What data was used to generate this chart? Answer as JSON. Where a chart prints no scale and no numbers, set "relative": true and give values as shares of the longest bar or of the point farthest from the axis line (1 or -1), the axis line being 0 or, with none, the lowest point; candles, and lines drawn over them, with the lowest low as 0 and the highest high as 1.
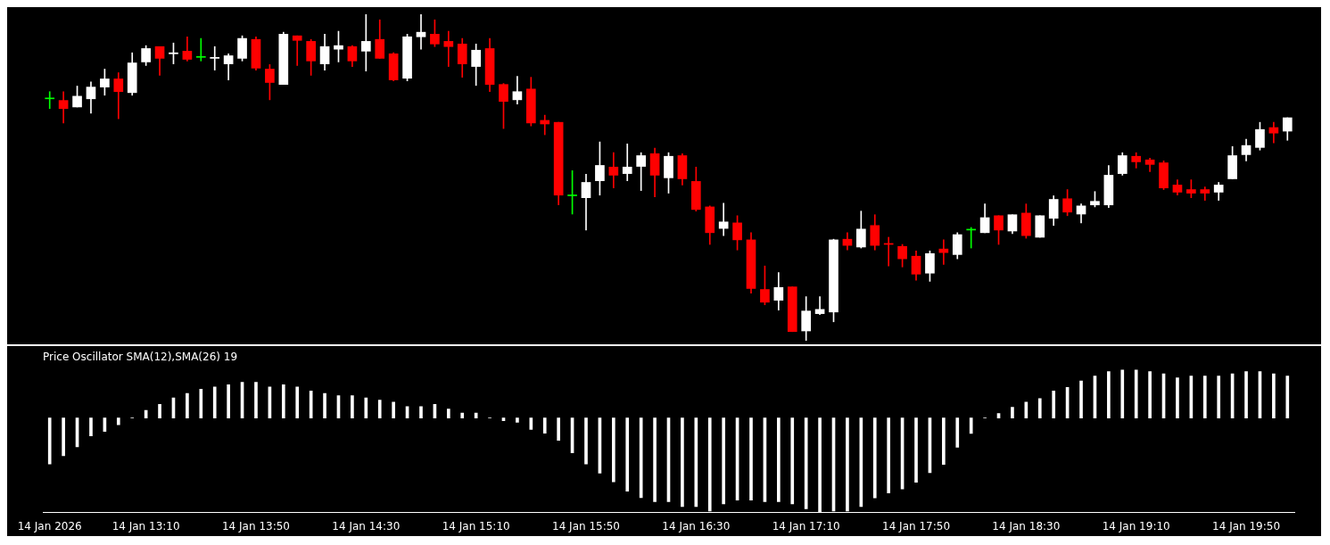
{
  "chart_data": [
    {
      "type": "candlestick",
      "relative": true,
      "tick_labels": false,
      "categories": [
        null,
        null,
        null,
        null,
        null,
        null,
        null,
        null,
        null,
        null,
        null,
        null,
        null,
        null,
        null,
        null,
        null,
        null,
        null,
        null,
        null,
        null,
        null,
        null,
        null,
        null,
        null,
        null,
        null,
        null,
        null,
        null,
        null,
        null,
        null,
        null,
        null,
        null,
        null,
        null,
        null,
        null,
        null,
        null,
        null,
        null,
        null,
        null,
        null,
        null,
        null,
        null,
        null,
        null,
        null,
        null,
        null,
        null,
        null,
        null,
        null,
        null,
        null,
        null,
        null,
        null,
        null,
        null,
        null,
        null,
        null,
        null,
        null,
        null,
        null,
        null,
        null,
        null,
        null,
        null,
        null,
        null,
        null,
        null,
        null,
        null,
        null,
        null,
        null,
        null,
        null
      ],
      "ohlc": [
        [
          0.741,
          0.763,
          0.711,
          0.741
        ],
        [
          0.736,
          0.763,
          0.667,
          0.711
        ],
        [
          0.716,
          0.78,
          0.716,
          0.749
        ],
        [
          0.741,
          0.793,
          0.697,
          0.777
        ],
        [
          0.777,
          0.832,
          0.752,
          0.802
        ],
        [
          0.802,
          0.821,
          0.68,
          0.763
        ],
        [
          0.76,
          0.882,
          0.752,
          0.851
        ],
        [
          0.854,
          0.904,
          0.843,
          0.895
        ],
        [
          0.901,
          0.901,
          0.813,
          0.865
        ],
        [
          0.879,
          0.912,
          0.848,
          0.882
        ],
        [
          0.887,
          0.931,
          0.857,
          0.862
        ],
        [
          0.868,
          0.926,
          0.857,
          0.868
        ],
        [
          0.865,
          0.901,
          0.829,
          0.868
        ],
        [
          0.848,
          0.879,
          0.799,
          0.873
        ],
        [
          0.865,
          0.934,
          0.857,
          0.926
        ],
        [
          0.923,
          0.931,
          0.829,
          0.835
        ],
        [
          0.832,
          0.846,
          0.738,
          0.791
        ],
        [
          0.785,
          0.945,
          0.785,
          0.939
        ],
        [
          0.934,
          0.934,
          0.843,
          0.92
        ],
        [
          0.917,
          0.923,
          0.813,
          0.857
        ],
        [
          0.848,
          0.939,
          0.829,
          0.901
        ],
        [
          0.893,
          0.948,
          0.854,
          0.904
        ],
        [
          0.901,
          0.904,
          0.84,
          0.857
        ],
        [
          0.887,
          1,
          0.826,
          0.917
        ],
        [
          0.923,
          0.983,
          0.865,
          0.865
        ],
        [
          0.879,
          0.882,
          0.796,
          0.799
        ],
        [
          0.804,
          0.939,
          0.796,
          0.931
        ],
        [
          0.931,
          1,
          0.893,
          0.945
        ],
        [
          0.939,
          0.983,
          0.901,
          0.909
        ],
        [
          0.917,
          0.948,
          0.84,
          0.901
        ],
        [
          0.909,
          0.926,
          0.807,
          0.848
        ],
        [
          0.84,
          0.909,
          0.782,
          0.89
        ],
        [
          0.895,
          0.926,
          0.763,
          0.785
        ],
        [
          0.785,
          0.788,
          0.65,
          0.733
        ],
        [
          0.738,
          0.81,
          0.725,
          0.763
        ],
        [
          0.771,
          0.807,
          0.658,
          0.667
        ],
        [
          0.675,
          0.691,
          0.631,
          0.664
        ],
        [
          0.669,
          0.669,
          0.416,
          0.446
        ],
        [
          0.444,
          0.521,
          0.388,
          0.444
        ],
        [
          0.438,
          0.51,
          0.339,
          0.485
        ],
        [
          0.49,
          0.609,
          0.446,
          0.537
        ],
        [
          0.532,
          0.576,
          0.468,
          0.507
        ],
        [
          0.512,
          0.603,
          0.49,
          0.532
        ],
        [
          0.534,
          0.576,
          0.46,
          0.567
        ],
        [
          0.573,
          0.59,
          0.441,
          0.507
        ],
        [
          0.499,
          0.576,
          0.452,
          0.565
        ],
        [
          0.567,
          0.573,
          0.477,
          0.496
        ],
        [
          0.488,
          0.532,
          0.397,
          0.402
        ],
        [
          0.41,
          0.413,
          0.295,
          0.331
        ],
        [
          0.344,
          0.421,
          0.322,
          0.364
        ],
        [
          0.361,
          0.383,
          0.278,
          0.309
        ],
        [
          0.309,
          0.331,
          0.146,
          0.16
        ],
        [
          0.157,
          0.229,
          0.11,
          0.118
        ],
        [
          0.124,
          0.209,
          0.094,
          0.163
        ],
        [
          0.165,
          0.165,
          0.028,
          0.028
        ],
        [
          0.03,
          0.135,
          0,
          0.091
        ],
        [
          0.083,
          0.135,
          0.08,
          0.096
        ],
        [
          0.088,
          0.311,
          0.058,
          0.309
        ],
        [
          0.311,
          0.331,
          0.278,
          0.292
        ],
        [
          0.287,
          0.397,
          0.284,
          0.342
        ],
        [
          0.353,
          0.386,
          0.278,
          0.292
        ],
        [
          0.298,
          0.317,
          0.229,
          0.295
        ],
        [
          0.289,
          0.295,
          0.226,
          0.251
        ],
        [
          0.259,
          0.275,
          0.185,
          0.204
        ],
        [
          0.207,
          0.275,
          0.182,
          0.267
        ],
        [
          0.281,
          0.309,
          0.234,
          0.27
        ],
        [
          0.264,
          0.331,
          0.251,
          0.325
        ],
        [
          0.339,
          0.347,
          0.284,
          0.339
        ],
        [
          0.331,
          0.419,
          0.331,
          0.377
        ],
        [
          0.383,
          0.383,
          0.295,
          0.339
        ],
        [
          0.336,
          0.386,
          0.328,
          0.386
        ],
        [
          0.391,
          0.419,
          0.314,
          0.322
        ],
        [
          0.317,
          0.383,
          0.317,
          0.383
        ],
        [
          0.375,
          0.444,
          0.353,
          0.433
        ],
        [
          0.435,
          0.463,
          0.383,
          0.394
        ],
        [
          0.388,
          0.419,
          0.361,
          0.413
        ],
        [
          0.416,
          0.457,
          0.41,
          0.427
        ],
        [
          0.416,
          0.537,
          0.408,
          0.507
        ],
        [
          0.512,
          0.576,
          0.507,
          0.567
        ],
        [
          0.565,
          0.576,
          0.529,
          0.548
        ],
        [
          0.554,
          0.559,
          0.518,
          0.54
        ],
        [
          0.545,
          0.551,
          0.463,
          0.468
        ],
        [
          0.477,
          0.493,
          0.446,
          0.455
        ],
        [
          0.463,
          0.493,
          0.438,
          0.452
        ],
        [
          0.463,
          0.471,
          0.43,
          0.452
        ],
        [
          0.455,
          0.485,
          0.43,
          0.477
        ],
        [
          0.496,
          0.595,
          0.496,
          0.567
        ],
        [
          0.57,
          0.617,
          0.551,
          0.598
        ],
        [
          0.592,
          0.669,
          0.584,
          0.647
        ],
        [
          0.653,
          0.669,
          0.606,
          0.636
        ],
        [
          0.642,
          0.683,
          0.614,
          0.683
        ]
      ],
      "colors": [
        "#00ff00",
        "#ff0000",
        "#ffffff",
        "#ffffff",
        "#ffffff",
        "#ff0000",
        "#ffffff",
        "#ffffff",
        "#ff0000",
        "#ffffff",
        "#ff0000",
        "#00ff00",
        "#ffffff",
        "#ffffff",
        "#ffffff",
        "#ff0000",
        "#ff0000",
        "#ffffff",
        "#ff0000",
        "#ff0000",
        "#ffffff",
        "#ffffff",
        "#ff0000",
        "#ffffff",
        "#ff0000",
        "#ff0000",
        "#ffffff",
        "#ffffff",
        "#ff0000",
        "#ff0000",
        "#ff0000",
        "#ffffff",
        "#ff0000",
        "#ff0000",
        "#ffffff",
        "#ff0000",
        "#ff0000",
        "#ff0000",
        "#00ff00",
        "#ffffff",
        "#ffffff",
        "#ff0000",
        "#ffffff",
        "#ffffff",
        "#ff0000",
        "#ffffff",
        "#ff0000",
        "#ff0000",
        "#ff0000",
        "#ffffff",
        "#ff0000",
        "#ff0000",
        "#ff0000",
        "#ffffff",
        "#ff0000",
        "#ffffff",
        "#ffffff",
        "#ffffff",
        "#ff0000",
        "#ffffff",
        "#ff0000",
        "#ff0000",
        "#ff0000",
        "#ff0000",
        "#ffffff",
        "#ff0000",
        "#ffffff",
        "#00ff00",
        "#ffffff",
        "#ff0000",
        "#ffffff",
        "#ff0000",
        "#ffffff",
        "#ffffff",
        "#ff0000",
        "#ffffff",
        "#ffffff",
        "#ffffff",
        "#ffffff",
        "#ff0000",
        "#ff0000",
        "#ff0000",
        "#ff0000",
        "#ff0000",
        "#ff0000",
        "#ffffff",
        "#ffffff",
        "#ffffff",
        "#ffffff",
        "#ff0000",
        "#ffffff"
      ]
    },
    {
      "type": "bar",
      "relative": true,
      "tick_labels": "x",
      "title": "Price Oscillator SMA(12),SMA(26) 19",
      "color": "#ffffff",
      "categories": [
        "14 Jan 2026",
        null,
        null,
        null,
        null,
        null,
        null,
        "14 Jan 13:10",
        null,
        null,
        null,
        null,
        null,
        null,
        null,
        "14 Jan 13:50",
        null,
        null,
        null,
        null,
        null,
        null,
        null,
        "14 Jan 14:30",
        null,
        null,
        null,
        null,
        null,
        null,
        null,
        "14 Jan 15:10",
        null,
        null,
        null,
        null,
        null,
        null,
        null,
        "14 Jan 15:50",
        null,
        null,
        null,
        null,
        null,
        null,
        null,
        "14 Jan 16:30",
        null,
        null,
        null,
        null,
        null,
        null,
        null,
        "14 Jan 17:10",
        null,
        null,
        null,
        null,
        null,
        null,
        null,
        "14 Jan 17:50",
        null,
        null,
        null,
        null,
        null,
        null,
        null,
        "14 Jan 18:30",
        null,
        null,
        null,
        null,
        null,
        null,
        null,
        "14 Jan 19:10",
        null,
        null,
        null,
        null,
        null,
        null,
        null,
        "14 Jan 19:50",
        null,
        null,
        null
      ],
      "values": [
        -0.486,
        -0.398,
        -0.305,
        -0.189,
        -0.141,
        -0.072,
        0,
        0.08,
        0.145,
        0.213,
        0.261,
        0.305,
        0.329,
        0.353,
        0.378,
        0.378,
        0.329,
        0.353,
        0.329,
        0.285,
        0.261,
        0.237,
        0.237,
        0.213,
        0.189,
        0.169,
        0.12,
        0.12,
        0.145,
        0.096,
        0.052,
        0.052,
        0,
        -0.028,
        -0.044,
        -0.12,
        -0.161,
        -0.237,
        -0.369,
        -0.486,
        -0.582,
        -0.675,
        -0.775,
        -0.843,
        -0.884,
        -0.884,
        -0.936,
        -0.937,
        -0.984,
        -0.909,
        -0.869,
        -0.869,
        -0.885,
        -0.885,
        -0.909,
        -0.96,
        -1,
        -0.984,
        -0.984,
        -0.937,
        -0.845,
        -0.794,
        -0.75,
        -0.679,
        -0.579,
        -0.492,
        -0.31,
        -0.163,
        0,
        0.048,
        0.115,
        0.167,
        0.206,
        0.286,
        0.325,
        0.393,
        0.444,
        0.492,
        0.512,
        0.512,
        0.492,
        0.468,
        0.425,
        0.444,
        0.444,
        0.444,
        0.468,
        0.492,
        0.492,
        0.468,
        0.444
      ]
    }
  ]
}
